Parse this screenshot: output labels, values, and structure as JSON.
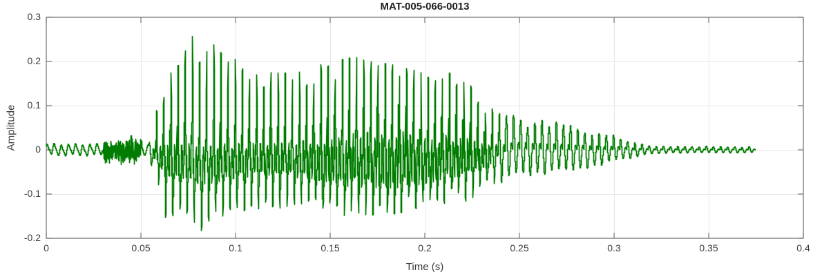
{
  "figure": {
    "background": "#ffffff"
  },
  "chart_data": {
    "type": "line",
    "title": "MAT-005-066-0013",
    "xlabel": "Time (s)",
    "ylabel": "Amplitude",
    "xlim": [
      0,
      0.4
    ],
    "ylim": [
      -0.2,
      0.3
    ],
    "xticks": [
      0,
      0.05,
      0.1,
      0.15,
      0.2,
      0.25,
      0.3,
      0.35,
      0.4
    ],
    "xtick_labels": [
      "0",
      "0.05",
      "0.1",
      "0.15",
      "0.2",
      "0.25",
      "0.3",
      "0.35",
      "0.4"
    ],
    "yticks": [
      -0.2,
      -0.1,
      0,
      0.1,
      0.2,
      0.3
    ],
    "ytick_labels": [
      "-0.2",
      "-0.1",
      "0",
      "0.1",
      "0.2",
      "0.3"
    ],
    "grid": true,
    "legend": "none",
    "line_color": "#007d00",
    "axis_color": "#7a7a7a",
    "grid_color": "#e6e6e6",
    "tick_label_color": "#3d3d3d",
    "title_color": "#1f1f1f",
    "signal": {
      "description": "speech waveform: quiet ripple, fricative noise burst, strong voiced segment of glottal pulses, decaying periodic tail",
      "f0_hz": 265,
      "t_start": 0.0,
      "t_end": 0.3745,
      "pre_ripple": {
        "t0": 0.0,
        "t1": 0.0305,
        "amp": 0.011,
        "freq_hz": 265
      },
      "noise_burst_env": [
        [
          0.0293,
          0.005
        ],
        [
          0.031,
          0.034
        ],
        [
          0.0335,
          0.029
        ],
        [
          0.036,
          0.021
        ],
        [
          0.0385,
          0.026
        ],
        [
          0.0405,
          0.031
        ],
        [
          0.0425,
          0.027
        ],
        [
          0.0445,
          0.033
        ],
        [
          0.0465,
          0.038
        ],
        [
          0.0485,
          0.026
        ],
        [
          0.0505,
          0.012
        ],
        [
          0.052,
          0.006
        ]
      ],
      "voiced_onset_t": 0.054,
      "voiced_end_t": 0.235,
      "smooth_tail_t": [
        0.232,
        0.248
      ],
      "pos_envelope": [
        [
          0.054,
          0.02
        ],
        [
          0.059,
          0.1
        ],
        [
          0.064,
          0.17
        ],
        [
          0.07,
          0.225
        ],
        [
          0.078,
          0.26
        ],
        [
          0.083,
          0.215
        ],
        [
          0.088,
          0.245
        ],
        [
          0.093,
          0.23
        ],
        [
          0.098,
          0.21
        ],
        [
          0.105,
          0.19
        ],
        [
          0.112,
          0.175
        ],
        [
          0.12,
          0.18
        ],
        [
          0.128,
          0.172
        ],
        [
          0.136,
          0.182
        ],
        [
          0.143,
          0.19
        ],
        [
          0.15,
          0.198
        ],
        [
          0.157,
          0.205
        ],
        [
          0.163,
          0.21
        ],
        [
          0.17,
          0.2
        ],
        [
          0.178,
          0.196
        ],
        [
          0.186,
          0.19
        ],
        [
          0.193,
          0.188
        ],
        [
          0.199,
          0.172
        ],
        [
          0.205,
          0.155
        ],
        [
          0.21,
          0.166
        ],
        [
          0.215,
          0.178
        ],
        [
          0.22,
          0.163
        ],
        [
          0.225,
          0.142
        ],
        [
          0.23,
          0.115
        ],
        [
          0.235,
          0.096
        ],
        [
          0.241,
          0.09
        ],
        [
          0.248,
          0.088
        ],
        [
          0.255,
          0.084
        ],
        [
          0.262,
          0.079
        ],
        [
          0.27,
          0.071
        ],
        [
          0.278,
          0.064
        ],
        [
          0.286,
          0.056
        ],
        [
          0.293,
          0.048
        ],
        [
          0.3,
          0.04
        ],
        [
          0.306,
          0.031
        ],
        [
          0.312,
          0.021
        ],
        [
          0.318,
          0.013
        ],
        [
          0.326,
          0.011
        ],
        [
          0.342,
          0.01
        ],
        [
          0.358,
          0.009
        ],
        [
          0.3745,
          0.009
        ]
      ],
      "neg_envelope": [
        [
          0.054,
          0.02
        ],
        [
          0.059,
          0.09
        ],
        [
          0.063,
          0.185
        ],
        [
          0.068,
          0.17
        ],
        [
          0.073,
          0.185
        ],
        [
          0.078,
          0.195
        ],
        [
          0.084,
          0.2
        ],
        [
          0.09,
          0.19
        ],
        [
          0.096,
          0.18
        ],
        [
          0.102,
          0.168
        ],
        [
          0.11,
          0.152
        ],
        [
          0.118,
          0.158
        ],
        [
          0.126,
          0.148
        ],
        [
          0.134,
          0.152
        ],
        [
          0.142,
          0.162
        ],
        [
          0.15,
          0.168
        ],
        [
          0.158,
          0.17
        ],
        [
          0.166,
          0.165
        ],
        [
          0.174,
          0.16
        ],
        [
          0.182,
          0.158
        ],
        [
          0.19,
          0.15
        ],
        [
          0.198,
          0.143
        ],
        [
          0.205,
          0.134
        ],
        [
          0.212,
          0.128
        ],
        [
          0.22,
          0.128
        ],
        [
          0.226,
          0.118
        ],
        [
          0.231,
          0.1
        ],
        [
          0.237,
          0.082
        ],
        [
          0.244,
          0.074
        ],
        [
          0.252,
          0.07
        ],
        [
          0.26,
          0.066
        ],
        [
          0.268,
          0.059
        ],
        [
          0.276,
          0.053
        ],
        [
          0.284,
          0.046
        ],
        [
          0.292,
          0.039
        ],
        [
          0.3,
          0.032
        ],
        [
          0.307,
          0.024
        ],
        [
          0.313,
          0.016
        ],
        [
          0.319,
          0.011
        ],
        [
          0.327,
          0.009
        ],
        [
          0.343,
          0.008
        ],
        [
          0.359,
          0.008
        ],
        [
          0.3745,
          0.007
        ]
      ]
    }
  }
}
